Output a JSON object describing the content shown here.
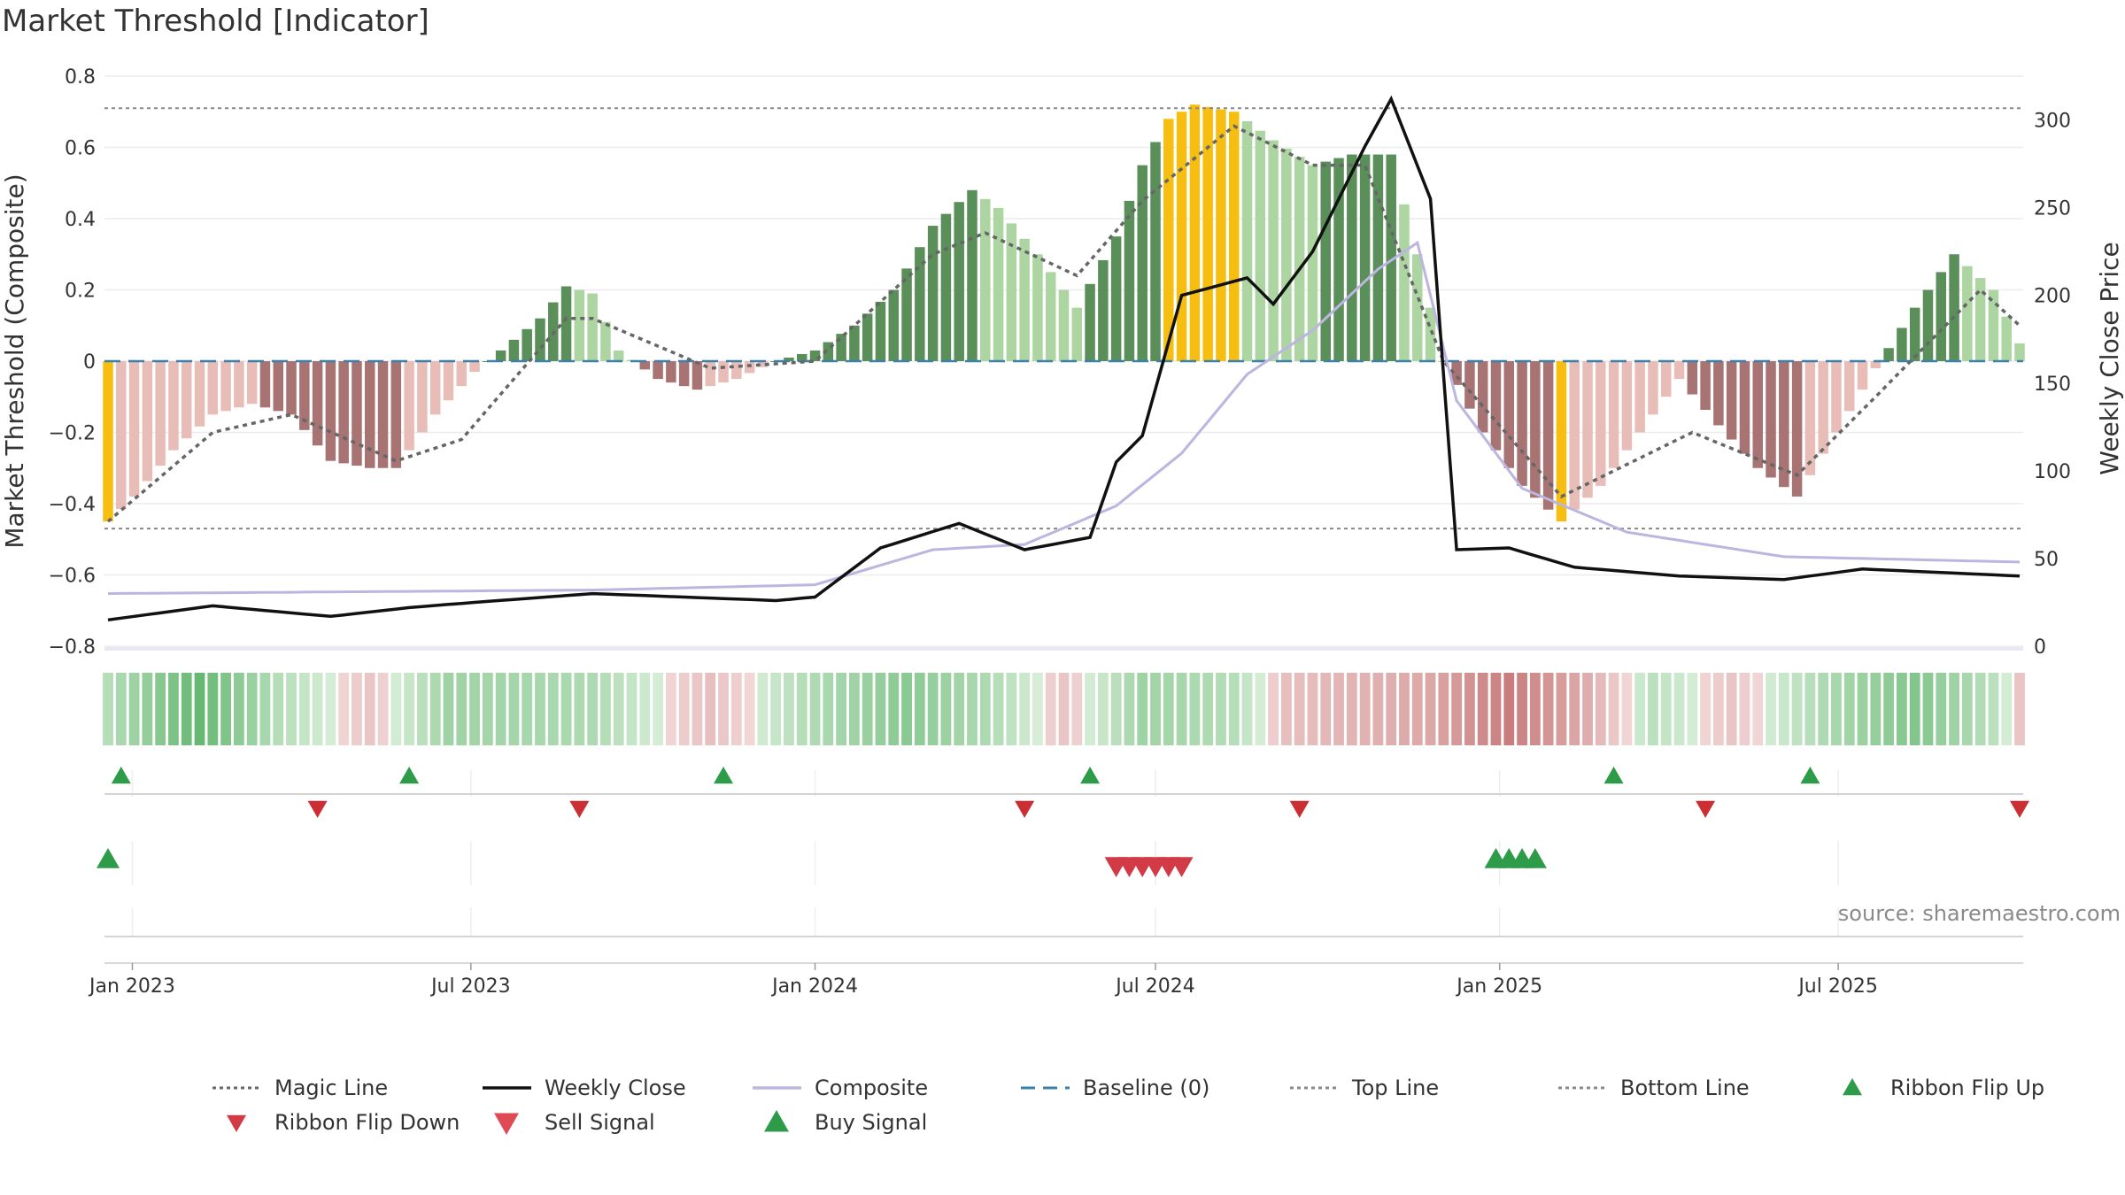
{
  "title": "Market Threshold [Indicator]",
  "source": "source: sharemaestro.com",
  "colors": {
    "strong_green": "#5a8f5a",
    "light_green": "#acd5a2",
    "strong_red": "#a87373",
    "light_red": "#e8bdb8",
    "extreme": "#f6be10",
    "close": "#111111",
    "composite": "#bbb5e0",
    "magic": "#666666",
    "baseline": "#3b80a8",
    "thresholds": "#888888",
    "buy": "#2e9b48",
    "sell": "#d23a45"
  },
  "chart_data": {
    "type": "bar",
    "title": "Market Threshold [Indicator]",
    "ylabel": "Market Threshold (Composite)",
    "y2label": "Weekly Close Price",
    "ylim": [
      -0.8,
      0.8
    ],
    "y2lim": [
      0,
      325
    ],
    "yticks": [
      -0.8,
      -0.6,
      -0.4,
      -0.2,
      0,
      0.2,
      0.4,
      0.6,
      0.8
    ],
    "ytick_labels": [
      "−0.8",
      "−0.6",
      "−0.4",
      "−0.2",
      "0",
      "0.2",
      "0.4",
      "0.6",
      "0.8"
    ],
    "y2ticks": [
      0,
      50,
      100,
      150,
      200,
      250,
      300
    ],
    "y2tick_labels": [
      "0",
      "50",
      "100",
      "150",
      "200",
      "250",
      "300"
    ],
    "x_start": "2022-12-19",
    "x_end": "2025-10-06",
    "xticks": [
      {
        "date": "2023-01-01",
        "label": "Jan 2023"
      },
      {
        "date": "2023-07-01",
        "label": "Jul 2023"
      },
      {
        "date": "2024-01-01",
        "label": "Jan 2024"
      },
      {
        "date": "2024-07-01",
        "label": "Jul 2024"
      },
      {
        "date": "2025-01-01",
        "label": "Jan 2025"
      },
      {
        "date": "2025-07-01",
        "label": "Jul 2025"
      }
    ],
    "top_line": 0.71,
    "bottom_line": -0.47,
    "baseline": 0,
    "grid": true,
    "legend_position": "bottom",
    "bar_keyframes": [
      [
        "2022-12-19",
        -0.45
      ],
      [
        "2023-01-02",
        -0.38
      ],
      [
        "2023-01-23",
        -0.25
      ],
      [
        "2023-02-13",
        -0.15
      ],
      [
        "2023-03-06",
        -0.12
      ],
      [
        "2023-03-27",
        -0.15
      ],
      [
        "2023-04-17",
        -0.28
      ],
      [
        "2023-05-08",
        -0.3
      ],
      [
        "2023-05-22",
        -0.3
      ],
      [
        "2023-06-12",
        -0.15
      ],
      [
        "2023-07-03",
        -0.03
      ],
      [
        "2023-07-17",
        0.03
      ],
      [
        "2023-08-07",
        0.12
      ],
      [
        "2023-08-21",
        0.21
      ],
      [
        "2023-09-04",
        0.19
      ],
      [
        "2023-09-18",
        0.03
      ],
      [
        "2023-10-09",
        -0.05
      ],
      [
        "2023-10-30",
        -0.08
      ],
      [
        "2023-11-20",
        -0.05
      ],
      [
        "2023-12-11",
        0.0
      ],
      [
        "2024-01-01",
        0.03
      ],
      [
        "2024-01-22",
        0.1
      ],
      [
        "2024-02-12",
        0.2
      ],
      [
        "2024-03-04",
        0.38
      ],
      [
        "2024-03-25",
        0.48
      ],
      [
        "2024-04-08",
        0.43
      ],
      [
        "2024-04-29",
        0.3
      ],
      [
        "2024-05-20",
        0.15
      ],
      [
        "2024-06-10",
        0.35
      ],
      [
        "2024-06-24",
        0.55
      ],
      [
        "2024-07-08",
        0.68
      ],
      [
        "2024-07-22",
        0.72
      ],
      [
        "2024-08-12",
        0.7
      ],
      [
        "2024-09-02",
        0.62
      ],
      [
        "2024-09-23",
        0.55
      ],
      [
        "2024-10-14",
        0.58
      ],
      [
        "2024-11-04",
        0.58
      ],
      [
        "2024-11-18",
        0.3
      ],
      [
        "2024-12-02",
        0.0
      ],
      [
        "2024-12-23",
        -0.2
      ],
      [
        "2025-01-13",
        -0.35
      ],
      [
        "2025-02-03",
        -0.45
      ],
      [
        "2025-02-24",
        -0.35
      ],
      [
        "2025-03-17",
        -0.2
      ],
      [
        "2025-04-07",
        -0.05
      ],
      [
        "2025-04-28",
        -0.18
      ],
      [
        "2025-05-19",
        -0.3
      ],
      [
        "2025-06-09",
        -0.38
      ],
      [
        "2025-06-30",
        -0.2
      ],
      [
        "2025-07-21",
        -0.02
      ],
      [
        "2025-08-11",
        0.15
      ],
      [
        "2025-09-01",
        0.3
      ],
      [
        "2025-09-22",
        0.2
      ],
      [
        "2025-10-06",
        0.05
      ]
    ],
    "close_keyframes": [
      [
        "2022-12-19",
        15
      ],
      [
        "2023-02-13",
        23
      ],
      [
        "2023-04-17",
        17
      ],
      [
        "2023-05-29",
        22
      ],
      [
        "2023-07-03",
        25
      ],
      [
        "2023-09-04",
        30
      ],
      [
        "2023-12-11",
        26
      ],
      [
        "2024-01-01",
        28
      ],
      [
        "2024-02-05",
        56
      ],
      [
        "2024-03-18",
        70
      ],
      [
        "2024-04-22",
        55
      ],
      [
        "2024-05-27",
        62
      ],
      [
        "2024-06-10",
        105
      ],
      [
        "2024-06-24",
        120
      ],
      [
        "2024-07-15",
        200
      ],
      [
        "2024-08-19",
        210
      ],
      [
        "2024-09-02",
        195
      ],
      [
        "2024-09-23",
        225
      ],
      [
        "2024-10-21",
        285
      ],
      [
        "2024-11-04",
        312
      ],
      [
        "2024-11-25",
        255
      ],
      [
        "2024-12-09",
        55
      ],
      [
        "2025-01-06",
        56
      ],
      [
        "2025-02-10",
        45
      ],
      [
        "2025-04-07",
        40
      ],
      [
        "2025-06-02",
        38
      ],
      [
        "2025-07-14",
        44
      ],
      [
        "2025-10-06",
        40
      ]
    ],
    "composite_keyframes": [
      [
        "2022-12-19",
        30
      ],
      [
        "2023-09-04",
        32
      ],
      [
        "2024-01-01",
        35
      ],
      [
        "2024-03-04",
        55
      ],
      [
        "2024-04-22",
        58
      ],
      [
        "2024-06-10",
        80
      ],
      [
        "2024-07-15",
        110
      ],
      [
        "2024-08-19",
        155
      ],
      [
        "2024-09-23",
        180
      ],
      [
        "2024-10-28",
        215
      ],
      [
        "2024-11-18",
        230
      ],
      [
        "2024-12-09",
        140
      ],
      [
        "2025-01-13",
        90
      ],
      [
        "2025-03-10",
        65
      ],
      [
        "2025-06-02",
        51
      ],
      [
        "2025-10-06",
        48
      ]
    ],
    "magic_keyframes": [
      [
        "2022-12-19",
        -0.45
      ],
      [
        "2023-02-13",
        -0.2
      ],
      [
        "2023-03-27",
        -0.15
      ],
      [
        "2023-05-22",
        -0.28
      ],
      [
        "2023-06-26",
        -0.22
      ],
      [
        "2023-08-21",
        0.12
      ],
      [
        "2023-09-04",
        0.12
      ],
      [
        "2023-11-06",
        -0.02
      ],
      [
        "2024-01-01",
        0.0
      ],
      [
        "2024-03-04",
        0.3
      ],
      [
        "2024-04-01",
        0.36
      ],
      [
        "2024-05-20",
        0.24
      ],
      [
        "2024-06-24",
        0.45
      ],
      [
        "2024-08-12",
        0.66
      ],
      [
        "2024-09-23",
        0.55
      ],
      [
        "2024-10-21",
        0.55
      ],
      [
        "2024-12-02",
        0.0
      ],
      [
        "2025-02-03",
        -0.38
      ],
      [
        "2025-04-14",
        -0.2
      ],
      [
        "2025-06-09",
        -0.32
      ],
      [
        "2025-07-21",
        -0.1
      ],
      [
        "2025-09-15",
        0.2
      ],
      [
        "2025-10-06",
        0.1
      ]
    ],
    "ribbon_keyframes": [
      [
        "2022-12-19",
        0.25
      ],
      [
        "2023-02-06",
        0.8
      ],
      [
        "2023-03-20",
        0.25
      ],
      [
        "2023-05-08",
        -0.15
      ],
      [
        "2023-06-19",
        0.4
      ],
      [
        "2023-09-04",
        0.3
      ],
      [
        "2023-11-06",
        -0.2
      ],
      [
        "2023-12-25",
        0.25
      ],
      [
        "2024-02-19",
        0.55
      ],
      [
        "2024-04-08",
        0.25
      ],
      [
        "2024-05-13",
        -0.15
      ],
      [
        "2024-06-24",
        0.4
      ],
      [
        "2024-08-12",
        0.25
      ],
      [
        "2024-09-09",
        -0.2
      ],
      [
        "2024-11-25",
        -0.4
      ],
      [
        "2025-01-06",
        -0.75
      ],
      [
        "2025-02-17",
        -0.35
      ],
      [
        "2025-03-24",
        0.2
      ],
      [
        "2025-05-05",
        -0.15
      ],
      [
        "2025-06-23",
        0.3
      ],
      [
        "2025-08-11",
        0.6
      ],
      [
        "2025-09-22",
        0.2
      ],
      [
        "2025-10-06",
        -0.15
      ]
    ],
    "ribbon_flip_up": [
      "2022-12-26",
      "2023-05-29",
      "2023-11-13",
      "2024-05-27",
      "2025-03-03",
      "2025-06-16"
    ],
    "ribbon_flip_down": [
      "2023-04-10",
      "2023-08-28",
      "2024-04-22",
      "2024-09-16",
      "2025-04-21",
      "2025-10-06"
    ],
    "sell_signal": [
      "2024-06-10",
      "2024-06-17",
      "2024-06-24",
      "2024-07-01",
      "2024-07-08",
      "2024-07-15"
    ],
    "buy_signal": [
      "2022-12-19",
      "2024-12-30",
      "2025-01-06",
      "2025-01-13",
      "2025-01-20"
    ]
  },
  "legend": [
    {
      "label": "Magic Line",
      "kind": "dotted",
      "color": "#666666"
    },
    {
      "label": "Weekly Close",
      "kind": "solid",
      "color": "#111111"
    },
    {
      "label": "Composite",
      "kind": "solid",
      "color": "#bbb5e0"
    },
    {
      "label": "Baseline (0)",
      "kind": "dashed",
      "color": "#3b80a8"
    },
    {
      "label": "Top Line",
      "kind": "dotted",
      "color": "#888888"
    },
    {
      "label": "Bottom Line",
      "kind": "dotted",
      "color": "#888888"
    },
    {
      "label": "Ribbon Flip Up",
      "kind": "tri-up",
      "color": "#2e9b48"
    },
    {
      "label": "Ribbon Flip Down",
      "kind": "tri-down",
      "color": "#d23a45"
    },
    {
      "label": "Sell Signal",
      "kind": "tri-down-big",
      "color": "#e04a55"
    },
    {
      "label": "Buy Signal",
      "kind": "tri-up-big",
      "color": "#2e9b48"
    }
  ]
}
